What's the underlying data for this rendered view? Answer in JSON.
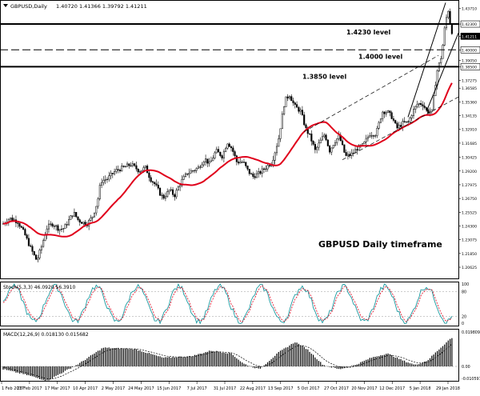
{
  "header": {
    "symbol": "GBPUSD,Daily",
    "ohlc": "1.40720 1.41366 1.39792 1.41211"
  },
  "watermark": "GBPUSD Daily timeframe",
  "levels": [
    {
      "label": "1.4230 level",
      "value": 1.423
    },
    {
      "label": "1.4000 level",
      "value": 1.4
    },
    {
      "label": "1.3850 level",
      "value": 1.385
    }
  ],
  "price_axis": {
    "ticks": [
      "1.43710",
      "1.42300",
      "1.41211",
      "1.40000",
      "1.39050",
      "1.38500",
      "1.37275",
      "1.36585",
      "1.35360",
      "1.34135",
      "1.32910",
      "1.31685",
      "1.30425",
      "1.29200",
      "1.27975",
      "1.26750",
      "1.25525",
      "1.24300",
      "1.23075",
      "1.21850",
      "1.20625"
    ],
    "range": [
      1.197,
      1.443
    ]
  },
  "stoch": {
    "header": "Stoch(5,3,3) 46.0920 56.3910",
    "levels": [
      "100",
      "80",
      "20",
      "0"
    ]
  },
  "macd": {
    "header": "MACD(12,26,9) 0.018130 0.015682",
    "ticks": [
      "0.019809",
      "0.00",
      "-0.010597"
    ]
  },
  "time_axis": {
    "labels": [
      "1 Feb 2017",
      "23 Feb 2017",
      "17 Mar 2017",
      "10 Apr 2017",
      "2 May 2017",
      "24 May 2017",
      "15 Jun 2017",
      "7 Jul 2017",
      "31 Jul 2017",
      "22 Aug 2017",
      "13 Sep 2017",
      "5 Oct 2017",
      "27 Oct 2017",
      "20 Nov 2017",
      "12 Dec 2017",
      "5 Jan 2018",
      "29 Jan 2018"
    ]
  },
  "colors": {
    "candle": "#000000",
    "ma_line": "#e0001b",
    "stoch_main": "#1a9aa0",
    "stoch_signal": "#e0001b",
    "macd_hist": "#000000",
    "macd_signal": "#000000"
  }
}
